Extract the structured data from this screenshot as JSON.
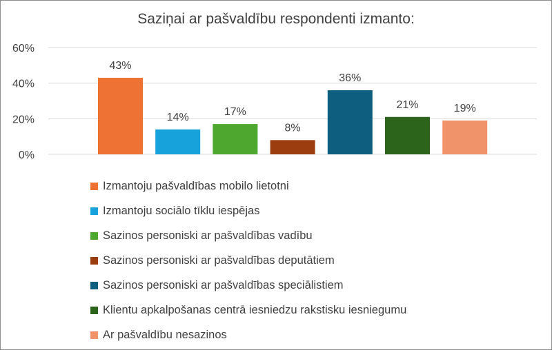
{
  "chart_data": {
    "type": "bar",
    "title": "Saziņai ar pašvaldību respondenti izmanto:",
    "ylim": [
      0,
      60
    ],
    "yticks": [
      "0%",
      "20%",
      "40%",
      "60%"
    ],
    "grid": true,
    "legend_position": "bottom",
    "series": [
      {
        "name": "Izmantoju pašvaldības mobilo lietotni",
        "value": 43,
        "label": "43%",
        "color": "#ED7233"
      },
      {
        "name": "Izmantoju sociālo tīklu iespējas",
        "value": 14,
        "label": "14%",
        "color": "#18A2DB"
      },
      {
        "name": "Sazinos personiski ar pašvaldības vadību",
        "value": 17,
        "label": "17%",
        "color": "#4EA72E"
      },
      {
        "name": "Sazinos personiski ar pašvaldības deputātiem",
        "value": 8,
        "label": "8%",
        "color": "#9C3D10"
      },
      {
        "name": "Sazinos personiski ar pašvaldības speciālistiem",
        "value": 36,
        "label": "36%",
        "color": "#0E5F7F"
      },
      {
        "name": "Klientu apkalpošanas centrā iesniedzu rakstisku iesniegumu",
        "value": 21,
        "label": "21%",
        "color": "#2C641C"
      },
      {
        "name": "Ar pašvaldību nesazinos",
        "value": 19,
        "label": "19%",
        "color": "#F0936A"
      }
    ]
  }
}
